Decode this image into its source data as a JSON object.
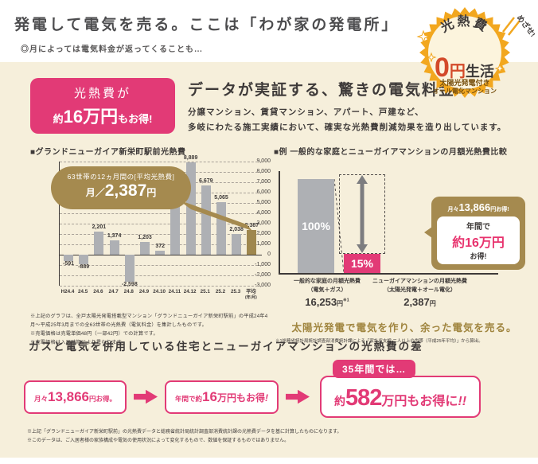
{
  "header": {
    "title": "発電して電気を売る。ここは「わが家の発電所」",
    "subtitle": "◎月によっては電気料金が返ってくることも…"
  },
  "badge": {
    "ribbon": "めざせ!",
    "arc_text": "光熱費",
    "zero_num": "0",
    "zero_yen": "円",
    "life": "生活",
    "sub1": "太陽光発電付き",
    "sub2": "オール電化マンション"
  },
  "intro": {
    "highlight_line1": "光熱費が",
    "highlight_pre": "約",
    "highlight_big": "16万円",
    "highlight_suf": "もお得!",
    "heading": "データが実証する、驚きの電気料金",
    "body1": "分譲マンション、賃貸マンション、アパート、戸建など、",
    "body2": "多岐にわたる施工実績において、確実な光熱費削減効果を造り出しています。"
  },
  "left_chart": {
    "title": "■グランドニューガイア新栄町駅前光熱費",
    "callout_line1": "63世帯の12ヵ月間の[平均光熱費]",
    "callout_prefix": "月／",
    "callout_value": "2,387",
    "callout_unit": "円",
    "notes": [
      "※上記のグラフは、全戸太陽光発電搭載型マンション「グランドニューガイア新栄町駅前」の平成24年4月～平成25年3月までの全63世帯の光熱費（電気料金）を集計したものです。",
      "※売電価格は売電単価48円（一部42円）での計算です。",
      "※売電価格は入居時期により異なります。"
    ]
  },
  "right_chart": {
    "title": "■例 一般的な家庭とニューガイアマンションの月額光熱費比較",
    "col1_line1": "一般的な家庭の月額光熱費",
    "col1_line2": "（電気＋ガス）",
    "col1_amount": "16,253",
    "col1_unit": "円",
    "col1_ref": "※1",
    "col2_line1": "ニューガイアマンションの月額光熱費",
    "col2_line2": "（太陽光発電＋オール電化）",
    "col2_amount": "2,387",
    "col2_unit": "円",
    "callout_top_pre": "月々",
    "callout_top_num": "13,866",
    "callout_top_suf": "円お得!",
    "callout_mid": "年間で",
    "callout_big": "約16万円",
    "callout_bot": "お得!",
    "slogan": "太陽光発電で電気を作り、余った電気を売る。",
    "note": "※1総務省統計局統計調査部消費統計課による「家計収支編 二人以上の世帯（平成25年平均）」から算出。"
  },
  "bottom": {
    "heading": "ガスと電気を併用している住宅とニューガイアマンションの光熱費の差",
    "box1": {
      "pre": "月々",
      "num": "13,866",
      "suf": "円お得。"
    },
    "box2": {
      "pre": "年間で約",
      "big": "16",
      "mid": "万円もお得",
      "excl": "!"
    },
    "box3": {
      "tag": "35年間では…",
      "pre": "約",
      "big": "582",
      "mid": "万円もお得に",
      "excl": "!!"
    },
    "notes": [
      "※上記「グランドニューガイア新栄町駅前」の光熱費データと総務省統計局統計調査部消費統計課の光熱費データを基に計算したものになります。",
      "※このデータは、ご入居者様の家族構成や電気の使用状況によって変化するもので、数値を保証するものではありません。"
    ]
  },
  "chart_data": [
    {
      "type": "bar",
      "title": "グランドニューガイア新栄町駅前光熱費",
      "categories": [
        "H24.4",
        "24.5",
        "24.6",
        "24.7",
        "24.8",
        "24.9",
        "24.10",
        "24.11",
        "24.12",
        "25.1",
        "25.2",
        "25.3",
        "平均"
      ],
      "avg_sub": "(年/月)",
      "avg_index": 12,
      "values": [
        -591,
        -889,
        2201,
        1374,
        -2598,
        1203,
        372,
        4702,
        8889,
        6679,
        5065,
        2038,
        2387
      ],
      "labels": [
        "-591",
        "-889",
        "2,201",
        "1,374",
        "-2,598",
        "1,203",
        "372",
        "4,702",
        "8,889",
        "6,679",
        "5,065",
        "2,038",
        "2,387"
      ],
      "ylabel": "円",
      "ylim": [
        -3000,
        9000
      ],
      "ytick_step": 1000,
      "grid": true,
      "bar_color": "#aeb0b4",
      "avg_bar_color": "#9f874e"
    },
    {
      "type": "bar",
      "title": "例 一般的な家庭とニューガイアマンションの月額光熱費比較",
      "categories": [
        "一般的な家庭の月額光熱費（電気＋ガス）",
        "ニューガイアマンションの月額光熱費（太陽光発電＋オール電化）"
      ],
      "values": [
        100,
        15
      ],
      "value_labels": [
        "100%",
        "15%"
      ],
      "amounts_yen": [
        16253,
        2387
      ],
      "bar_colors": [
        "#aeb0b4",
        "#e23a76"
      ],
      "ylim": [
        0,
        100
      ]
    }
  ],
  "colors": {
    "accent_pink": "#e23a76",
    "text_pink": "#e8336e",
    "gold": "#a58a4f",
    "brown_text": "#a0853f",
    "cream": "#f6efdb",
    "bar_gray": "#aeb0b4",
    "badge_orange": "#f2a71f",
    "badge_red": "#d34a2a",
    "text_dark": "#3e3a39"
  }
}
